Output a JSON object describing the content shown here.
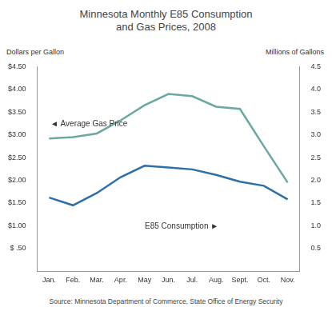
{
  "chart_data": {
    "type": "line",
    "title": [
      "Minnesota Monthly E85 Consumption",
      "and Gas Prices, 2008"
    ],
    "y_label": "Dollars per Gallon",
    "y2_label": "Millions of Gallons",
    "source": "Source: Minnesota Department of Commerce, State Office of Energy Security",
    "categories": [
      "Jan.",
      "Feb.",
      "Mar.",
      "Apr.",
      "May",
      "Jun.",
      "Jul.",
      "Aug.",
      "Sept.",
      "Oct.",
      "Nov."
    ],
    "series": [
      {
        "name": "◄ Average Gas Price",
        "color": "#6aa8a0",
        "values": [
          2.92,
          2.95,
          3.03,
          3.32,
          3.65,
          3.9,
          3.85,
          3.62,
          3.57,
          2.75,
          1.95
        ]
      },
      {
        "name": "E85 Consumption ►",
        "color": "#2f6fa8",
        "axis": "y2",
        "values": [
          1.62,
          1.45,
          1.72,
          2.07,
          2.32,
          2.28,
          2.24,
          2.12,
          1.97,
          1.88,
          1.58
        ]
      }
    ],
    "ylim": [
      0,
      4.5
    ],
    "yticks": [
      {
        "value": 0.5,
        "label": "$ .50"
      },
      {
        "value": 1,
        "label": "$1.00"
      },
      {
        "value": 1.5,
        "label": "$1.50"
      },
      {
        "value": 2,
        "label": "$2.00"
      },
      {
        "value": 2.5,
        "label": "$2.50"
      },
      {
        "value": 3,
        "label": "$3.00"
      },
      {
        "value": 3.5,
        "label": "$3.50"
      },
      {
        "value": 4,
        "label": "$4.00"
      },
      {
        "value": 4.5,
        "label": "$4.50"
      }
    ],
    "y2lim": [
      0,
      4.5
    ],
    "y2ticks": [
      0.5,
      {
        "value": 1,
        "label": "1.0"
      },
      1.5,
      {
        "value": 2,
        "label": "2.0"
      },
      2.5,
      {
        "value": 3,
        "label": "3.0"
      },
      3.5,
      {
        "value": 4,
        "label": "4.0"
      },
      4.5
    ],
    "grid": false
  }
}
